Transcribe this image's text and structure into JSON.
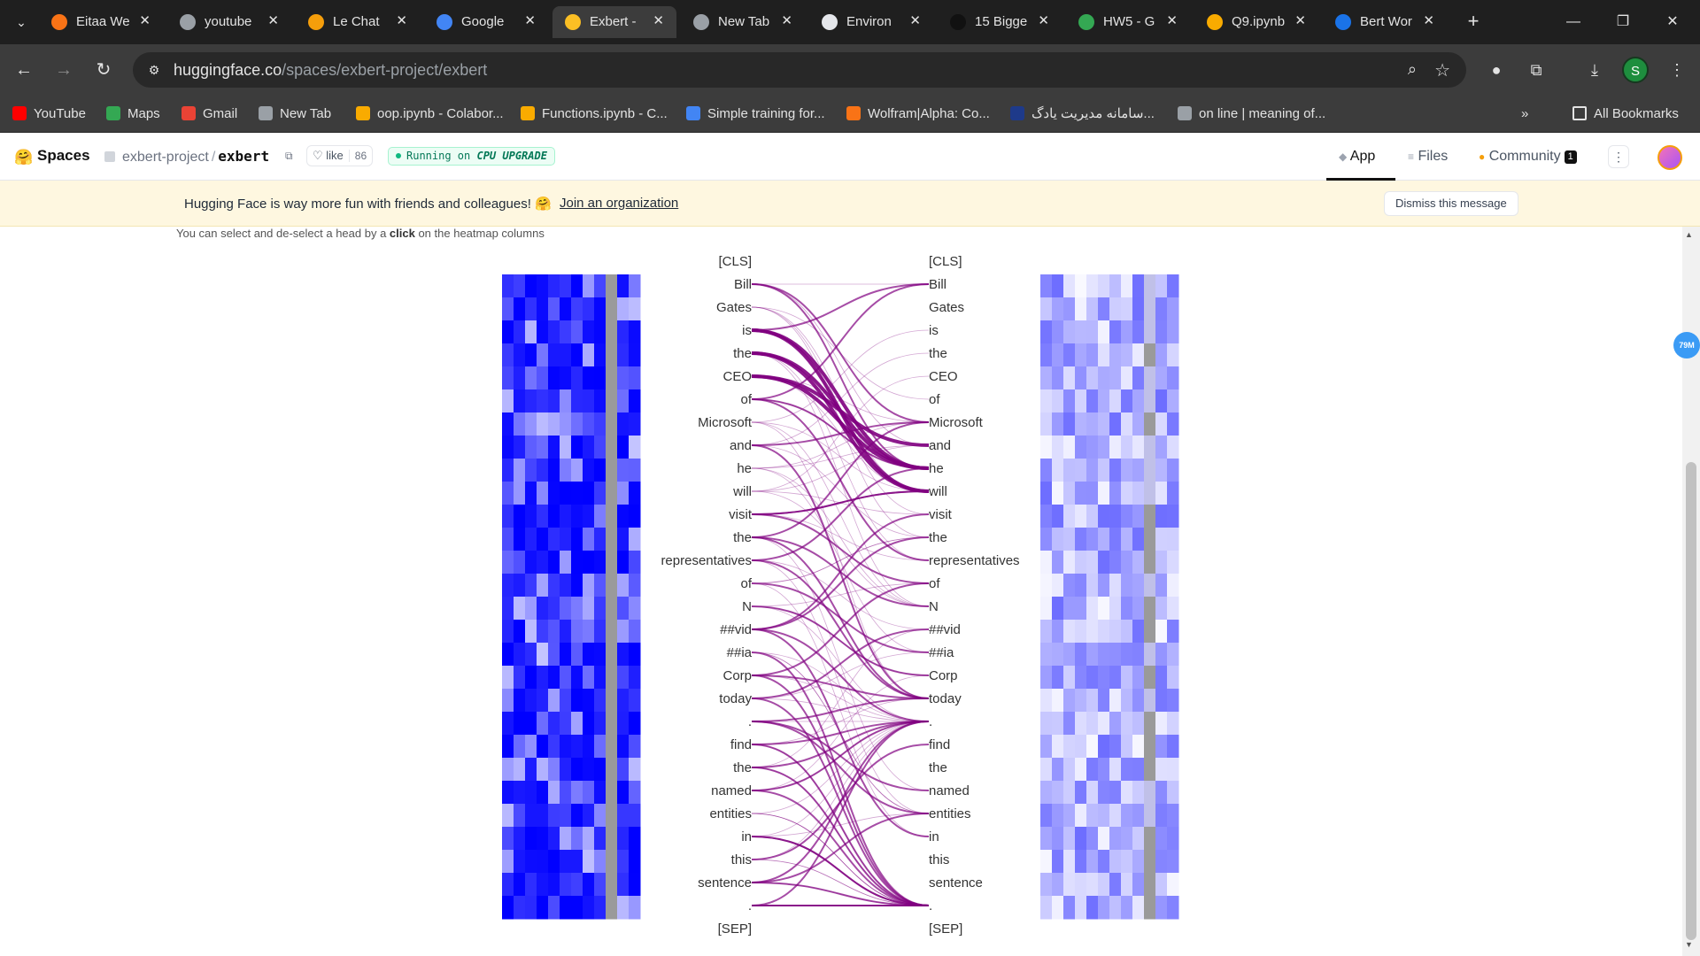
{
  "browser": {
    "tabs": [
      {
        "title": "Eitaa We",
        "fav": "#f97316"
      },
      {
        "title": "youtube",
        "fav": "#9aa0a6"
      },
      {
        "title": "Le Chat",
        "fav": "#f59e0b"
      },
      {
        "title": "Google",
        "fav": "#4285f4"
      },
      {
        "title": "Exbert -",
        "fav": "#fbbf24"
      },
      {
        "title": "New Tab",
        "fav": "#9aa0a6"
      },
      {
        "title": "Environ",
        "fav": "#e5e7eb"
      },
      {
        "title": "15 Bigge",
        "fav": "#111111"
      },
      {
        "title": "HW5 - G",
        "fav": "#34a853"
      },
      {
        "title": "Q9.ipynb",
        "fav": "#f9ab00"
      },
      {
        "title": "Bert Wor",
        "fav": "#1a73e8"
      }
    ],
    "active_tab_index": 4,
    "url_host": "huggingface.co",
    "url_path": "/spaces/exbert-project/exbert",
    "profile_initial": "S",
    "bookmarks": [
      {
        "label": "YouTube",
        "fav": "#ff0000"
      },
      {
        "label": "Maps",
        "fav": "#34a853"
      },
      {
        "label": "Gmail",
        "fav": "#ea4335"
      },
      {
        "label": "New Tab",
        "fav": "#9aa0a6"
      },
      {
        "label": "oop.ipynb - Colabor...",
        "fav": "#f9ab00"
      },
      {
        "label": "Functions.ipynb - C...",
        "fav": "#f9ab00"
      },
      {
        "label": "Simple training for...",
        "fav": "#4285f4"
      },
      {
        "label": "Wolfram|Alpha: Co...",
        "fav": "#f97316"
      },
      {
        "label": "سامانه مدیریت یادگ...",
        "fav": "#1e3a8a"
      },
      {
        "label": "on line | meaning of...",
        "fav": "#9aa0a6"
      }
    ],
    "all_bookmarks": "All Bookmarks"
  },
  "hf": {
    "spaces": "Spaces",
    "owner": "exbert-project",
    "repo": "exbert",
    "like_label": "like",
    "like_count": "86",
    "running_prefix": "Running on",
    "running_hw": "CPU UPGRADE",
    "nav_app": "App",
    "nav_files": "Files",
    "nav_community": "Community",
    "community_count": "1",
    "banner_msg": "Hugging Face is way more fun with friends and colleagues! 🤗",
    "banner_link": "Join an organization",
    "dismiss": "Dismiss this message"
  },
  "app": {
    "instructions_pre": "You can select and de-select a head by a ",
    "instructions_bold": "click",
    "instructions_post": " on the heatmap columns",
    "side_badge": "79M",
    "tokens": [
      "[CLS]",
      "Bill",
      "Gates",
      "is",
      "the",
      "CEO",
      "of",
      "Microsoft",
      "and",
      "he",
      "will",
      "visit",
      "the",
      "representatives",
      "of",
      "N",
      "##vid",
      "##ia",
      "Corp",
      "today",
      ".",
      "find",
      "the",
      "named",
      "entities",
      "in",
      "this",
      "sentence",
      ".",
      "[SEP]"
    ]
  }
}
